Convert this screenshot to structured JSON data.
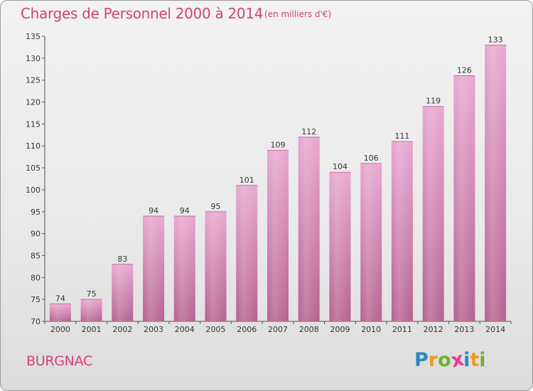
{
  "chart_data": {
    "type": "bar",
    "title": "Charges de Personnel 2000 à 2014",
    "subtitle": "(en milliers d'€)",
    "categories": [
      "2000",
      "2001",
      "2002",
      "2003",
      "2004",
      "2005",
      "2006",
      "2007",
      "2008",
      "2009",
      "2010",
      "2011",
      "2012",
      "2013",
      "2014"
    ],
    "values": [
      74,
      75,
      83,
      94,
      94,
      95,
      101,
      109,
      112,
      104,
      106,
      111,
      119,
      126,
      133
    ],
    "ylim": [
      70,
      135
    ],
    "yticks": [
      70,
      75,
      80,
      85,
      90,
      95,
      100,
      105,
      110,
      115,
      120,
      125,
      130,
      135
    ],
    "xlabel": "",
    "ylabel": "",
    "bar_color": "#dd93c2",
    "grid": false
  },
  "commune": "BURGNAC",
  "logo": {
    "letters": [
      "P",
      "r",
      "o",
      "x",
      "i",
      "t",
      "i"
    ],
    "colors": [
      "#2f86c8",
      "#f09a1b",
      "#6ab630",
      "#e83a8b",
      "#2f86c8",
      "#f09a1b",
      "#6ab630"
    ]
  }
}
